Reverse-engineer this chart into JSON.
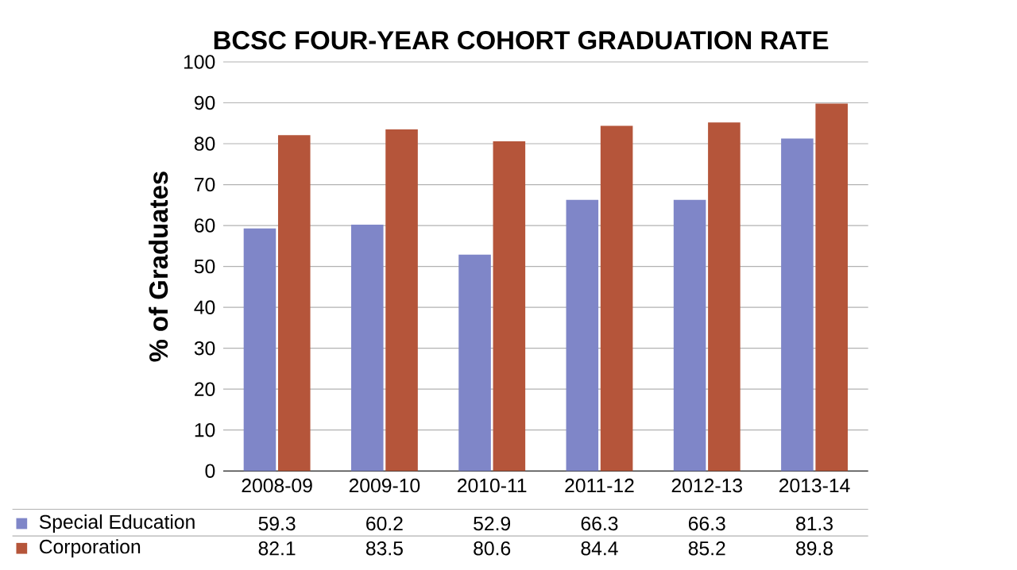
{
  "chart_data": {
    "type": "bar",
    "title": "BCSC FOUR-YEAR COHORT GRADUATION RATE",
    "ylabel": "% of Graduates",
    "categories": [
      "2008-09",
      "2009-10",
      "2010-11",
      "2011-12",
      "2012-13",
      "2013-14"
    ],
    "series": [
      {
        "name": "Special Education",
        "color": "#7f86c8",
        "values": [
          59.3,
          60.2,
          52.9,
          66.3,
          66.3,
          81.3
        ]
      },
      {
        "name": "Corporation",
        "color": "#b5553a",
        "values": [
          82.1,
          83.5,
          80.6,
          84.4,
          85.2,
          89.8
        ]
      }
    ],
    "ylim": [
      0,
      100
    ],
    "yticks": [
      0,
      10,
      20,
      30,
      40,
      50,
      60,
      70,
      80,
      90,
      100
    ],
    "grid": "y",
    "data_labels": true,
    "legend": "bottom"
  }
}
